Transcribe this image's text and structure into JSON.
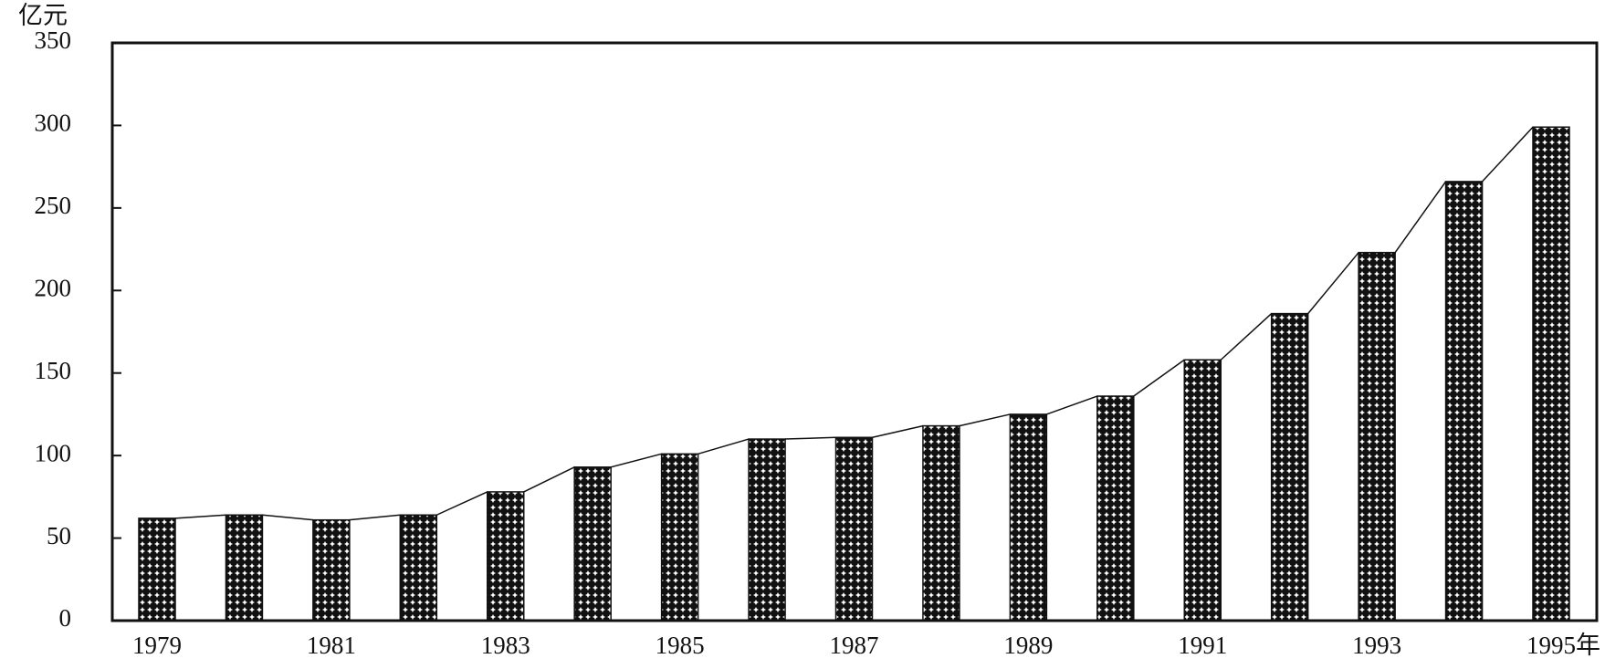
{
  "chart_data": {
    "type": "bar",
    "y_label": "亿元",
    "x_label": "年",
    "categories": [
      "1979",
      null,
      "1981",
      null,
      "1983",
      null,
      "1985",
      null,
      "1987",
      null,
      "1989",
      null,
      "1991",
      null,
      "1993",
      null,
      "1995"
    ],
    "values": [
      62,
      64,
      61,
      64,
      78,
      93,
      101,
      110,
      111,
      118,
      125,
      136,
      158,
      186,
      223,
      266,
      299
    ],
    "color": "#111111",
    "ylim": [
      0,
      350
    ],
    "yticks": [
      0,
      50,
      100,
      150,
      200,
      250,
      300,
      350
    ],
    "connector_line": true
  }
}
